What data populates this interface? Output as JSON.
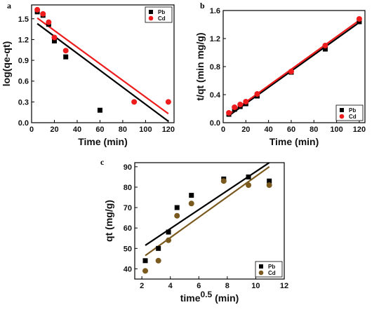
{
  "chart_data": [
    {
      "panel": "a",
      "type": "scatter",
      "xlabel": "Time (min)",
      "ylabel": "log(qe-qt)",
      "xlim": [
        0,
        125
      ],
      "ylim": [
        0,
        1.7
      ],
      "xticks": [
        0,
        20,
        40,
        60,
        80,
        100,
        120
      ],
      "yticks": [
        0.0,
        0.3,
        0.6,
        0.9,
        1.2,
        1.5
      ],
      "ytick_labels": [
        "0.0",
        "0.3",
        "0.6",
        "0.9",
        "1.2",
        "1.5"
      ],
      "legend_position": "top-right",
      "series": [
        {
          "name": "Pb",
          "marker": "square",
          "color": "#000000",
          "x": [
            5,
            10,
            15,
            20,
            30,
            60
          ],
          "y": [
            1.6,
            1.55,
            1.42,
            1.18,
            0.95,
            0.18
          ],
          "fit": {
            "x": [
              5,
              120
            ],
            "y": [
              1.43,
              0.02
            ]
          }
        },
        {
          "name": "Cd",
          "marker": "circle",
          "color": "#ee1c1c",
          "x": [
            5,
            10,
            15,
            20,
            30,
            90,
            120
          ],
          "y": [
            1.63,
            1.57,
            1.45,
            1.23,
            1.04,
            0.3,
            0.3
          ],
          "fit": {
            "x": [
              5,
              120
            ],
            "y": [
              1.51,
              0.13
            ]
          }
        }
      ]
    },
    {
      "panel": "b",
      "type": "scatter",
      "xlabel": "Time (min)",
      "ylabel": "t/qt (min mg/g)",
      "xlim": [
        0,
        125
      ],
      "ylim": [
        0,
        1.6
      ],
      "xticks": [
        0,
        20,
        40,
        60,
        80,
        100,
        120
      ],
      "yticks": [
        0.0,
        0.4,
        0.8,
        1.2,
        1.6
      ],
      "ytick_labels": [
        "0.0",
        "0.4",
        "0.8",
        "1.2",
        "1.6"
      ],
      "legend_position": "bottom-right",
      "series": [
        {
          "name": "Pb",
          "marker": "square",
          "color": "#000000",
          "x": [
            5,
            10,
            15,
            20,
            30,
            60,
            90,
            120
          ],
          "y": [
            0.12,
            0.19,
            0.23,
            0.27,
            0.38,
            0.72,
            1.05,
            1.44
          ],
          "fit": {
            "x": [
              5,
              120
            ],
            "y": [
              0.1,
              1.43
            ]
          }
        },
        {
          "name": "Cd",
          "marker": "circle",
          "color": "#ee1c1c",
          "x": [
            5,
            10,
            15,
            20,
            30,
            60,
            90,
            120
          ],
          "y": [
            0.14,
            0.22,
            0.26,
            0.3,
            0.41,
            0.73,
            1.1,
            1.48
          ],
          "fit": {
            "x": [
              5,
              120
            ],
            "y": [
              0.12,
              1.46
            ]
          }
        }
      ]
    },
    {
      "panel": "c",
      "type": "scatter",
      "xlabel": "time",
      "xlabel_sup": "0.5",
      "xlabel_unit": " (min)",
      "ylabel": "qt (mg/g)",
      "xlim": [
        1.5,
        12
      ],
      "ylim": [
        35,
        92
      ],
      "xticks": [
        2,
        4,
        6,
        8,
        10,
        12
      ],
      "yticks": [
        40,
        50,
        60,
        70,
        80,
        90
      ],
      "ytick_labels": [
        "40",
        "50",
        "60",
        "70",
        "80",
        "90"
      ],
      "legend_position": "bottom-right",
      "series": [
        {
          "name": "Pb",
          "marker": "square",
          "color": "#000000",
          "x": [
            2.24,
            3.16,
            3.87,
            4.47,
            5.48,
            7.75,
            9.49,
            10.95
          ],
          "y": [
            44,
            50,
            58,
            70,
            76,
            84,
            85,
            83
          ],
          "fit": {
            "x": [
              2.24,
              10.95
            ],
            "y": [
              51.5,
              92
            ]
          }
        },
        {
          "name": "Cd",
          "marker": "circle",
          "color": "#7b5a1f",
          "x": [
            2.24,
            3.16,
            3.87,
            4.47,
            5.48,
            7.75,
            9.49,
            10.95
          ],
          "y": [
            39,
            44,
            54,
            66,
            72,
            83,
            81,
            81
          ],
          "fit": {
            "x": [
              2.24,
              10.95
            ],
            "y": [
              46.5,
              90
            ]
          }
        }
      ]
    }
  ]
}
